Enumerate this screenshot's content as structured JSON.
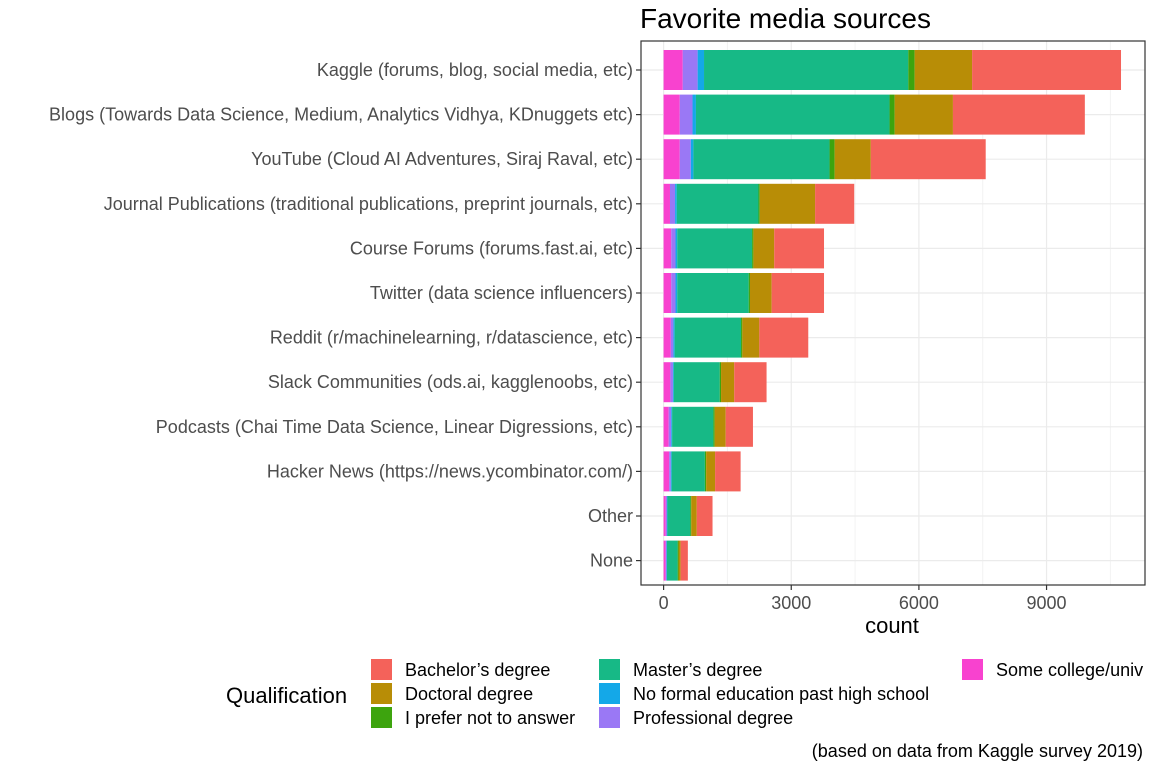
{
  "chart_data": {
    "type": "bar",
    "orientation": "horizontal",
    "stacked": true,
    "title": "Favorite media sources",
    "xlabel": "count",
    "ylabel": "",
    "caption": "(based on data from Kaggle survey 2019)",
    "xlim": [
      0,
      11000
    ],
    "xticks": [
      0,
      3000,
      6000,
      9000
    ],
    "xtick_labels": [
      "0",
      "3000",
      "6000",
      "9000"
    ],
    "grid": true,
    "legend": {
      "title": "Qualification",
      "position": "bottom"
    },
    "categories": [
      "Kaggle (forums, blog, social media, etc)",
      "Blogs (Towards Data Science, Medium, Analytics Vidhya, KDnuggets etc)",
      "YouTube (Cloud AI Adventures, Siraj Raval, etc)",
      "Journal Publications (traditional publications, preprint journals, etc)",
      "Course Forums (forums.fast.ai, etc)",
      "Twitter (data science influencers)",
      "Reddit (r/machinelearning, r/datascience, etc)",
      "Slack Communities (ods.ai, kagglenoobs, etc)",
      "Podcasts (Chai Time Data Science, Linear Digressions, etc)",
      "Hacker News (https://news.ycombinator.com/)",
      "Other",
      "None"
    ],
    "series": [
      {
        "name": "Some college/university study without earning a bachelor’s degree",
        "legend_label": "Some college/univ",
        "color": "#F842CF",
        "values": [
          450,
          380,
          380,
          150,
          180,
          180,
          170,
          160,
          120,
          130,
          50,
          50
        ]
      },
      {
        "name": "Professional degree",
        "legend_label": "Professional degree",
        "color": "#9A78F5",
        "values": [
          350,
          300,
          260,
          120,
          100,
          100,
          60,
          60,
          60,
          40,
          30,
          20
        ]
      },
      {
        "name": "No formal education past high school",
        "legend_label": "No formal education past high school",
        "color": "#14A8E8",
        "values": [
          150,
          80,
          60,
          40,
          40,
          40,
          30,
          20,
          20,
          20,
          10,
          10
        ]
      },
      {
        "name": "Master’s degree",
        "legend_label": "Master’s degree",
        "color": "#17B986",
        "values": [
          4800,
          4550,
          3200,
          1920,
          1760,
          1680,
          1560,
          1080,
          970,
          780,
          540,
          250
        ]
      },
      {
        "name": "I prefer not to answer",
        "legend_label": "I prefer not to answer",
        "color": "#3DA40E",
        "values": [
          150,
          120,
          120,
          30,
          30,
          30,
          30,
          30,
          30,
          30,
          20,
          20
        ]
      },
      {
        "name": "Doctoral degree",
        "legend_label": "Doctoral degree",
        "color": "#B88D06",
        "values": [
          1350,
          1370,
          850,
          1300,
          490,
          510,
          400,
          310,
          260,
          210,
          130,
          50
        ]
      },
      {
        "name": "Bachelor’s degree",
        "legend_label": "Bachelor’s degree",
        "color": "#F4625A",
        "values": [
          3500,
          3100,
          2700,
          920,
          1170,
          1230,
          1150,
          760,
          640,
          600,
          370,
          170
        ]
      }
    ],
    "legend_order": [
      "Bachelor’s degree",
      "Doctoral degree",
      "I prefer not to answer",
      "Master’s degree",
      "No formal education past high school",
      "Professional degree",
      "Some college/univ"
    ]
  }
}
